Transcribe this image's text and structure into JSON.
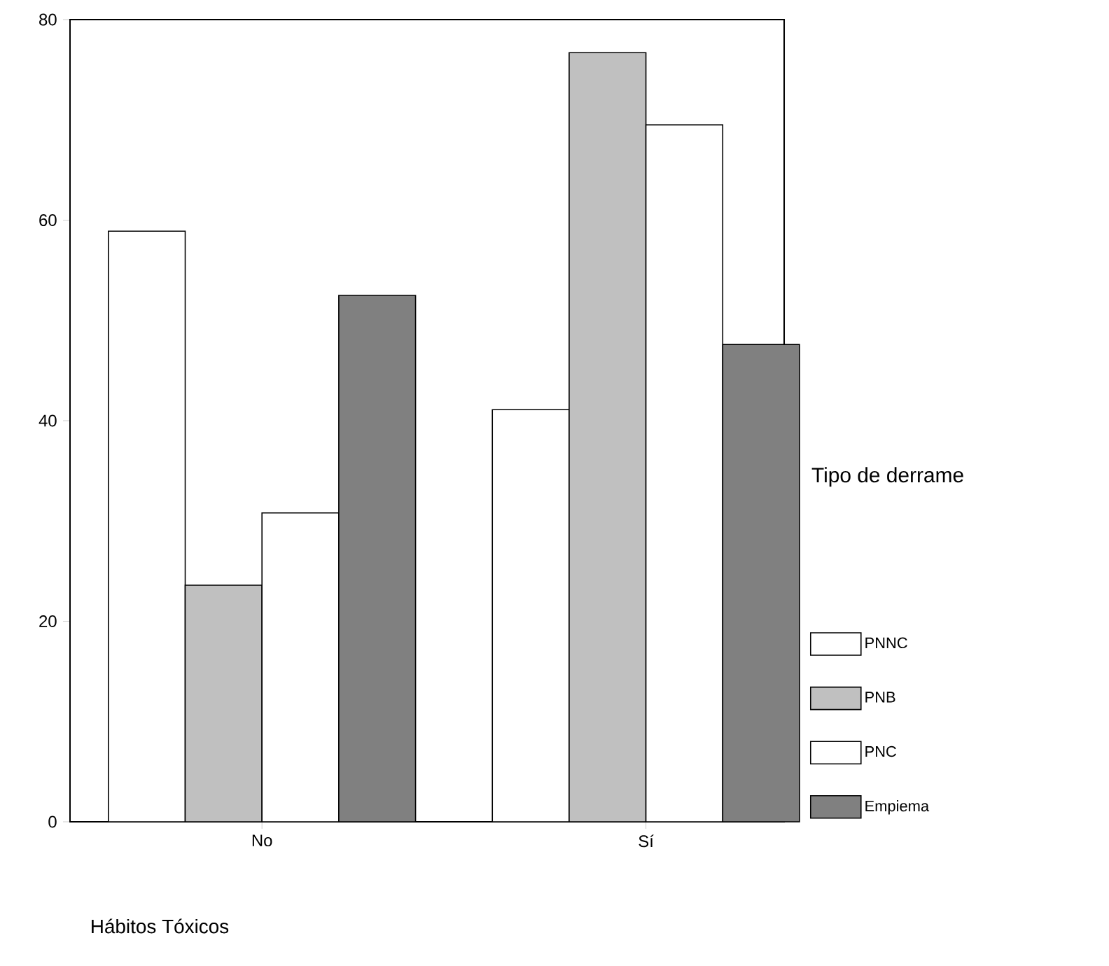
{
  "chart_data": {
    "type": "bar",
    "xlabel": "Hábitos Tóxicos",
    "legend_title": "Tipo de derrame",
    "legend": "right",
    "categories": [
      "No",
      "Sí"
    ],
    "series": [
      {
        "name": "PNNC",
        "color": "#ffffff",
        "values": [
          58.9,
          41.1
        ]
      },
      {
        "name": "PNB",
        "color": "#c0c0c0",
        "values": [
          23.6,
          76.7
        ]
      },
      {
        "name": "PNC",
        "color": "#ffffff",
        "values": [
          30.8,
          69.5
        ]
      },
      {
        "name": "Empiema",
        "color": "#808080",
        "values": [
          52.5,
          47.6
        ]
      }
    ],
    "ylim": [
      0,
      80
    ],
    "yticks": [
      0,
      20,
      40,
      60,
      80
    ]
  }
}
